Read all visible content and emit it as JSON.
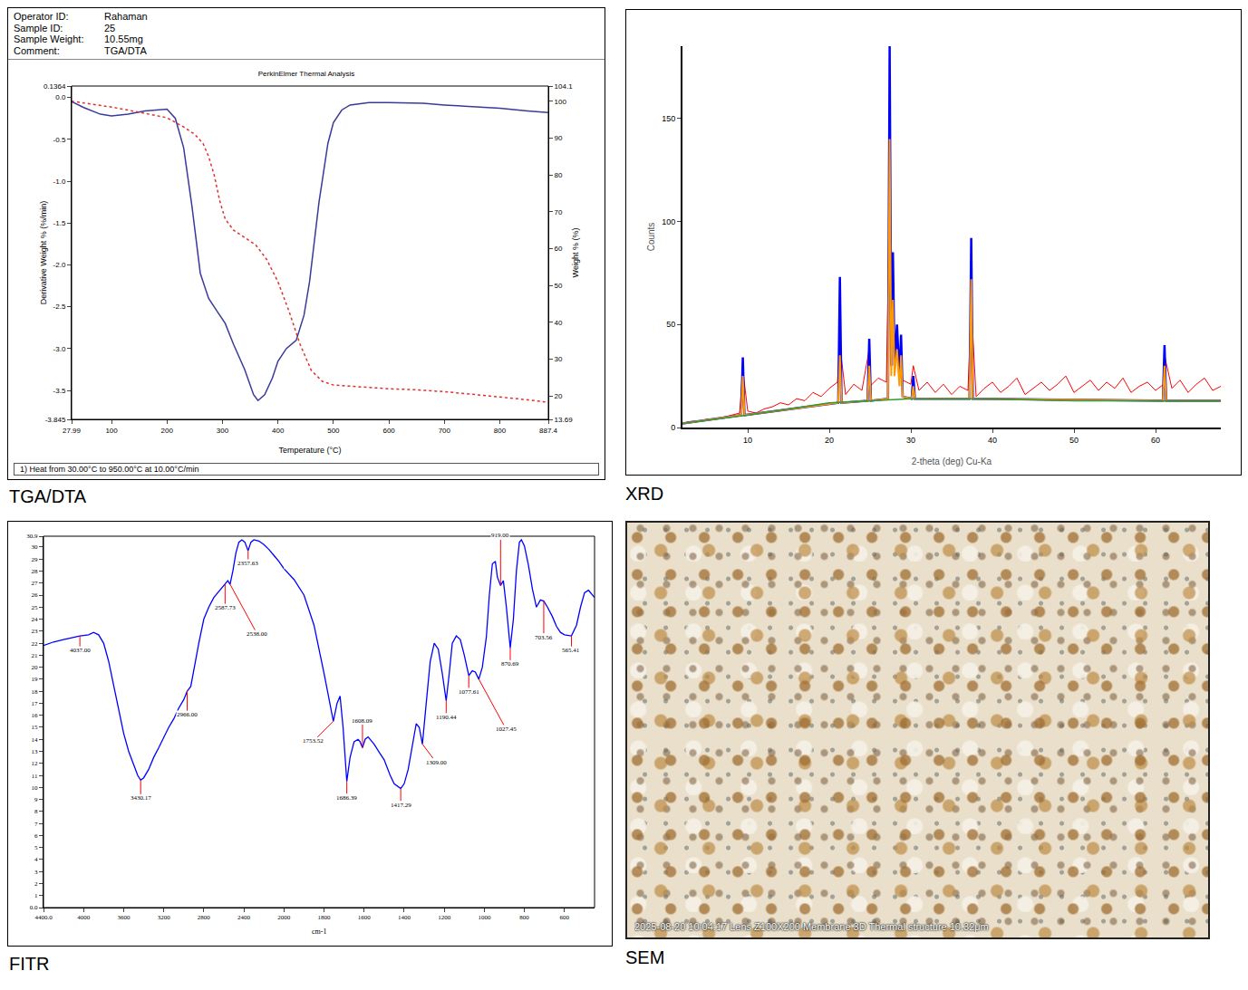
{
  "chart_data": [
    {
      "type": "line",
      "panel_label": "TGA/DTA",
      "header": [
        {
          "label": "Operator ID:",
          "value": "Rahaman"
        },
        {
          "label": "Sample ID:",
          "value": "25"
        },
        {
          "label": "Sample Weight:",
          "value": "10.55mg"
        },
        {
          "label": "Comment:",
          "value": "TGA/DTA"
        }
      ],
      "title": "PerkinElmer Thermal Analysis",
      "footer": "1) Heat from 30.00°C to 950.00°C at 10.00°C/min",
      "x_label": "Temperature (°C)",
      "y_label": "Derivative Weight % (%/min)",
      "y2_label": "Weight % (%)",
      "xlim": [
        27.99,
        887.4
      ],
      "xticks": [
        27.99,
        100,
        200,
        300,
        400,
        500,
        600,
        700,
        800,
        887.4
      ],
      "ylim": [
        -3.845,
        0.1364
      ],
      "yticks": [
        0.1364,
        {
          "value": 0,
          "label": "0.0"
        },
        -0.5,
        {
          "value": -1,
          "label": "-1.0"
        },
        -1.5,
        {
          "value": -2,
          "label": "-2.0"
        },
        -2.5,
        {
          "value": -3,
          "label": "-3.0"
        },
        -3.5,
        -3.845
      ],
      "y2lim": [
        13.69,
        104.1
      ],
      "y2ticks": [
        104.1,
        100,
        90,
        80,
        70,
        60,
        50,
        40,
        30,
        20,
        13.69
      ],
      "grid": false,
      "series": [
        {
          "color": "#3a3a9c",
          "line_style": "solid",
          "x": [
            28,
            50,
            80,
            100,
            130,
            160,
            200,
            215,
            230,
            245,
            260,
            275,
            290,
            305,
            320,
            340,
            356,
            364,
            376,
            390,
            400,
            415,
            433,
            447,
            457,
            466,
            474,
            482,
            490,
            500,
            515,
            530,
            564,
            600,
            662,
            700,
            761,
            800,
            850,
            887
          ],
          "values": [
            -0.05,
            -0.12,
            -0.2,
            -0.22,
            -0.2,
            -0.16,
            -0.14,
            -0.25,
            -0.6,
            -1.3,
            -2.1,
            -2.4,
            -2.55,
            -2.7,
            -2.95,
            -3.25,
            -3.55,
            -3.62,
            -3.55,
            -3.35,
            -3.15,
            -3.0,
            -2.9,
            -2.6,
            -2.2,
            -1.7,
            -1.25,
            -0.9,
            -0.55,
            -0.3,
            -0.15,
            -0.09,
            -0.06,
            -0.06,
            -0.07,
            -0.09,
            -0.11,
            -0.13,
            -0.16,
            -0.18
          ]
        },
        {
          "color": "#e03030",
          "line_style": "dotted",
          "axis": "y2",
          "x": [
            28,
            60,
            100,
            150,
            200,
            230,
            250,
            265,
            275,
            285,
            295,
            305,
            320,
            340,
            360,
            380,
            400,
            420,
            440,
            460,
            480,
            500,
            550,
            600,
            650,
            700,
            750,
            800,
            850,
            887
          ],
          "values": [
            100,
            99.3,
            98.4,
            97,
            95.5,
            93,
            91,
            88.5,
            85,
            80,
            73,
            68,
            65,
            63,
            61,
            57,
            51,
            43,
            34,
            27,
            24,
            23,
            22.5,
            22,
            21.7,
            21.2,
            20.5,
            19.8,
            19,
            18.3
          ]
        }
      ]
    },
    {
      "type": "line",
      "panel_label": "XRD",
      "y_label": "Counts",
      "x_label": "2-theta (deg) Cu-Ka",
      "xlim": [
        2,
        68
      ],
      "xticks": [
        10,
        20,
        30,
        40,
        50,
        60
      ],
      "ylim": [
        0,
        185
      ],
      "yticks": [
        0,
        50,
        100,
        150
      ],
      "grid": false,
      "series": [
        {
          "color": "#ff0000",
          "line_style": "solid",
          "x": [
            2,
            3,
            4,
            5,
            6,
            7,
            8,
            9,
            9.4,
            10,
            11,
            12,
            13,
            14,
            15,
            16,
            17,
            18,
            19,
            20,
            21,
            21.3,
            22,
            23,
            24,
            24.9,
            25,
            26,
            27,
            27.4,
            27.8,
            28,
            28.3,
            29,
            30,
            30.3,
            31,
            32,
            33,
            34,
            35,
            36,
            37,
            37.4,
            38,
            39,
            40,
            41,
            42,
            43,
            44,
            45,
            46,
            47,
            48,
            49,
            50,
            51,
            52,
            53,
            54,
            55,
            56,
            57,
            58,
            59,
            60,
            61,
            61.1,
            62,
            63,
            64,
            65,
            66,
            67,
            68
          ],
          "values": [
            2,
            3,
            3,
            4,
            4,
            5,
            6,
            7,
            28,
            8,
            7,
            9,
            10,
            12,
            11,
            14,
            13,
            17,
            15,
            19,
            22,
            40,
            16,
            21,
            18,
            38,
            20,
            24,
            22,
            120,
            60,
            26,
            40,
            23,
            21,
            30,
            18,
            22,
            17,
            21,
            16,
            20,
            18,
            60,
            15,
            19,
            22,
            17,
            20,
            24,
            16,
            19,
            22,
            18,
            21,
            25,
            17,
            20,
            23,
            18,
            22,
            19,
            24,
            17,
            20,
            22,
            18,
            21,
            35,
            19,
            23,
            17,
            21,
            24,
            18,
            20
          ]
        },
        {
          "color": "#0000ff",
          "line_style": "solid",
          "x": [
            2,
            9.2,
            9.4,
            9.6,
            21.1,
            21.3,
            21.5,
            24.7,
            24.9,
            25.1,
            27.2,
            27.4,
            27.6,
            27.8,
            28.0,
            28.3,
            28.6,
            28.8,
            29.0,
            30.1,
            30.3,
            30.5,
            37.2,
            37.4,
            37.6,
            60.9,
            61.1,
            61.3,
            68
          ],
          "values": [
            2,
            6,
            34,
            6,
            12,
            73,
            12,
            13,
            43,
            13,
            14,
            185,
            30,
            85,
            30,
            50,
            25,
            45,
            15,
            14,
            25,
            14,
            14,
            92,
            14,
            13,
            40,
            13,
            13
          ]
        },
        {
          "color": "#ff9900",
          "line_style": "solid",
          "x": [
            2,
            9.2,
            9.4,
            9.6,
            21.1,
            21.3,
            21.5,
            24.7,
            24.9,
            25.1,
            27.2,
            27.4,
            27.6,
            27.8,
            28.0,
            28.3,
            28.6,
            28.8,
            29.0,
            30.1,
            30.3,
            30.5,
            37.2,
            37.4,
            37.6,
            60.9,
            61.1,
            61.3,
            68
          ],
          "values": [
            2,
            6,
            25,
            6,
            12,
            35,
            12,
            13,
            30,
            13,
            14,
            140,
            25,
            62,
            25,
            38,
            20,
            35,
            15,
            14,
            20,
            14,
            14,
            72,
            14,
            13,
            30,
            13,
            13
          ]
        },
        {
          "color": "#339933",
          "line_style": "solid",
          "x": [
            2,
            10,
            20,
            30,
            40,
            50,
            60,
            68
          ],
          "values": [
            2,
            6,
            12,
            14,
            14,
            13,
            13,
            13
          ]
        }
      ]
    },
    {
      "type": "line",
      "panel_label": "FITR",
      "x_label": "cm-1",
      "xlim": [
        [
          4400,
          2000
        ],
        [
          2000,
          450
        ]
      ],
      "xticks": [
        {
          "value": 4400,
          "label": "4400.0"
        },
        4000,
        3600,
        3200,
        2800,
        2400,
        2000,
        1800,
        1600,
        1400,
        1200,
        1000,
        800,
        600
      ],
      "ylim": [
        0,
        30.9
      ],
      "yticks": [
        {
          "value": 0,
          "label": "0.0"
        },
        1,
        2,
        3,
        4,
        5,
        6,
        7,
        8,
        9,
        10,
        11,
        12,
        13,
        14,
        15,
        16,
        17,
        18,
        19,
        20,
        21,
        22,
        23,
        24,
        25,
        26,
        27,
        28,
        29,
        30,
        30.9
      ],
      "grid": false,
      "series": [
        {
          "color": "#0000ff",
          "line_style": "solid",
          "x": [
            4400,
            4300,
            4200,
            4100,
            4037,
            3950,
            3900,
            3850,
            3800,
            3750,
            3700,
            3650,
            3600,
            3550,
            3500,
            3460,
            3430.17,
            3400,
            3350,
            3300,
            3250,
            3200,
            3150,
            3100,
            3050,
            3000,
            2966,
            2930,
            2900,
            2850,
            2800,
            2750,
            2700,
            2650,
            2620,
            2587.73,
            2560,
            2538,
            2510,
            2480,
            2450,
            2420,
            2390,
            2357.63,
            2330,
            2300,
            2250,
            2200,
            2150,
            2100,
            2050,
            2000,
            1950,
            1900,
            1850,
            1800,
            1770,
            1753.52,
            1735,
            1720,
            1705,
            1686.39,
            1670,
            1650,
            1630,
            1620,
            1608.09,
            1595,
            1580,
            1550,
            1520,
            1500,
            1470,
            1450,
            1417.29,
            1400,
            1380,
            1360,
            1340,
            1325,
            1309,
            1290,
            1270,
            1250,
            1230,
            1210,
            1190.44,
            1175,
            1160,
            1140,
            1120,
            1100,
            1077.61,
            1060,
            1045,
            1027.45,
            1010,
            990,
            975,
            960,
            945,
            935,
            919,
            905,
            890,
            870.69,
            855,
            840,
            825,
            815,
            800,
            780,
            760,
            740,
            720,
            703.56,
            685,
            660,
            640,
            620,
            600,
            565.41,
            540,
            520,
            500,
            480,
            460,
            450
          ],
          "values": [
            21.8,
            22.1,
            22.3,
            22.5,
            22.6,
            22.7,
            22.9,
            22.7,
            22,
            20.5,
            18.5,
            16.3,
            14.5,
            13,
            11.8,
            11,
            10.6,
            10.8,
            11.5,
            12.5,
            13.3,
            14.2,
            15,
            15.7,
            16.6,
            17.3,
            18,
            18.4,
            19.8,
            22,
            24,
            25,
            25.8,
            26.3,
            26.6,
            26.9,
            27.2,
            26.9,
            28,
            29.5,
            30.4,
            30.6,
            30.4,
            29.7,
            30.4,
            30.6,
            30.5,
            30.2,
            29.8,
            29.3,
            28.8,
            28.2,
            27.3,
            26,
            23.5,
            19.5,
            16.8,
            15.5,
            17,
            17.6,
            15,
            10.5,
            12.5,
            13.8,
            14,
            13.8,
            13.3,
            14,
            14.2,
            13.6,
            12.8,
            12.3,
            11,
            10.3,
            9.9,
            10.3,
            11.5,
            13.5,
            15.3,
            15,
            13.6,
            17,
            20.5,
            22,
            21.5,
            19.5,
            17.2,
            19.5,
            22,
            22.6,
            22.3,
            21,
            19.3,
            19.7,
            19.6,
            19,
            20,
            22.5,
            26,
            28.6,
            28.8,
            27.5,
            26.8,
            27.2,
            25,
            21.6,
            24,
            28,
            30.4,
            30.6,
            30.1,
            28.5,
            26.5,
            25,
            25.6,
            25.5,
            25,
            24.2,
            23.4,
            22.9,
            22.7,
            22.6,
            23.5,
            25,
            26.2,
            26.4,
            26,
            25.8
          ]
        }
      ],
      "peaks": [
        {
          "value": 4037,
          "label": "4037.00",
          "y": 22.6
        },
        {
          "value": 3430.17,
          "label": "3430.17",
          "y": 10.6
        },
        {
          "value": 2966,
          "label": "2966.00",
          "y": 18
        },
        {
          "value": 2587.73,
          "label": "2587.73",
          "y": 26.9
        },
        {
          "value": 2538,
          "label": "2538.00",
          "y": 26.9
        },
        {
          "value": 2357.63,
          "label": "2357.63",
          "y": 29.7
        },
        {
          "value": 1753.52,
          "label": "1753.52",
          "y": 15.5
        },
        {
          "value": 1686.39,
          "label": "1686.39",
          "y": 10.5
        },
        {
          "value": 1608.09,
          "label": "1608.09",
          "y": 13.3
        },
        {
          "value": 1417.29,
          "label": "1417.29",
          "y": 9.9
        },
        {
          "value": 1309,
          "label": "1309.00",
          "y": 13.6
        },
        {
          "value": 1190.44,
          "label": "1190.44",
          "y": 17.2
        },
        {
          "value": 1077.61,
          "label": "1077.61",
          "y": 19.3
        },
        {
          "value": 1027.45,
          "label": "1027.45",
          "y": 19
        },
        {
          "value": 919,
          "label": "919.00",
          "y": 26.8
        },
        {
          "value": 870.69,
          "label": "870.69",
          "y": 21.6
        },
        {
          "value": 703.56,
          "label": "703.56",
          "y": 25.5
        },
        {
          "value": 565.41,
          "label": "565.41",
          "y": 22.6
        }
      ]
    }
  ],
  "image": {
    "panel_label": "SEM",
    "caption": "2025-08-20 10:04:17  Lens Z100X200  Membrane 3D  Thermal structure  10.32μm"
  }
}
